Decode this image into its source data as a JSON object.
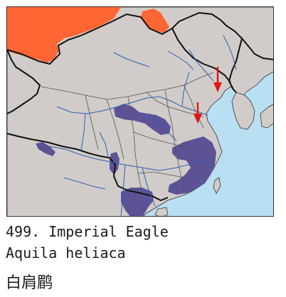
{
  "caption": {
    "species_line": "499. Imperial Eagle",
    "scientific_name": "Aquila heliaca",
    "chinese_name": "白肩鹛"
  },
  "map": {
    "colors": {
      "sea": "#b9dff2",
      "land": "#d1ccc9",
      "breeding_range": "#ff6633",
      "wintering_range": "#5c5396",
      "border": "#111111",
      "river": "#2f5fb0",
      "arrow": "#e01515"
    },
    "legend_semantics": {
      "orange": "breeding range",
      "purple": "wintering range",
      "red arrows": "migration sightings"
    }
  }
}
